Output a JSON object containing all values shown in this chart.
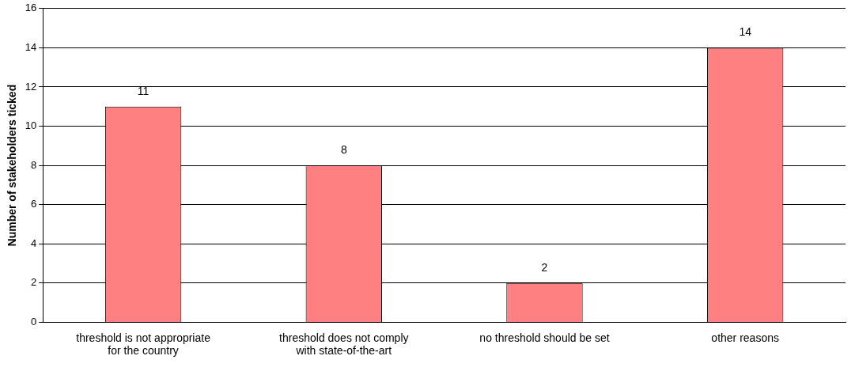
{
  "chart_data": {
    "type": "bar",
    "ylabel": "Number of stakeholders ticked",
    "categories": [
      "threshold is not appropriate\nfor the country",
      "threshold does not comply\nwith state-of-the-art",
      "no threshold should be set",
      "other reasons"
    ],
    "values": [
      11,
      8,
      2,
      14
    ],
    "color": "#ff8080",
    "ylim": [
      0,
      16
    ],
    "yticks": [
      0,
      2,
      4,
      6,
      8,
      10,
      12,
      14,
      16
    ],
    "grid": "y",
    "data_labels": true,
    "legend": false
  }
}
